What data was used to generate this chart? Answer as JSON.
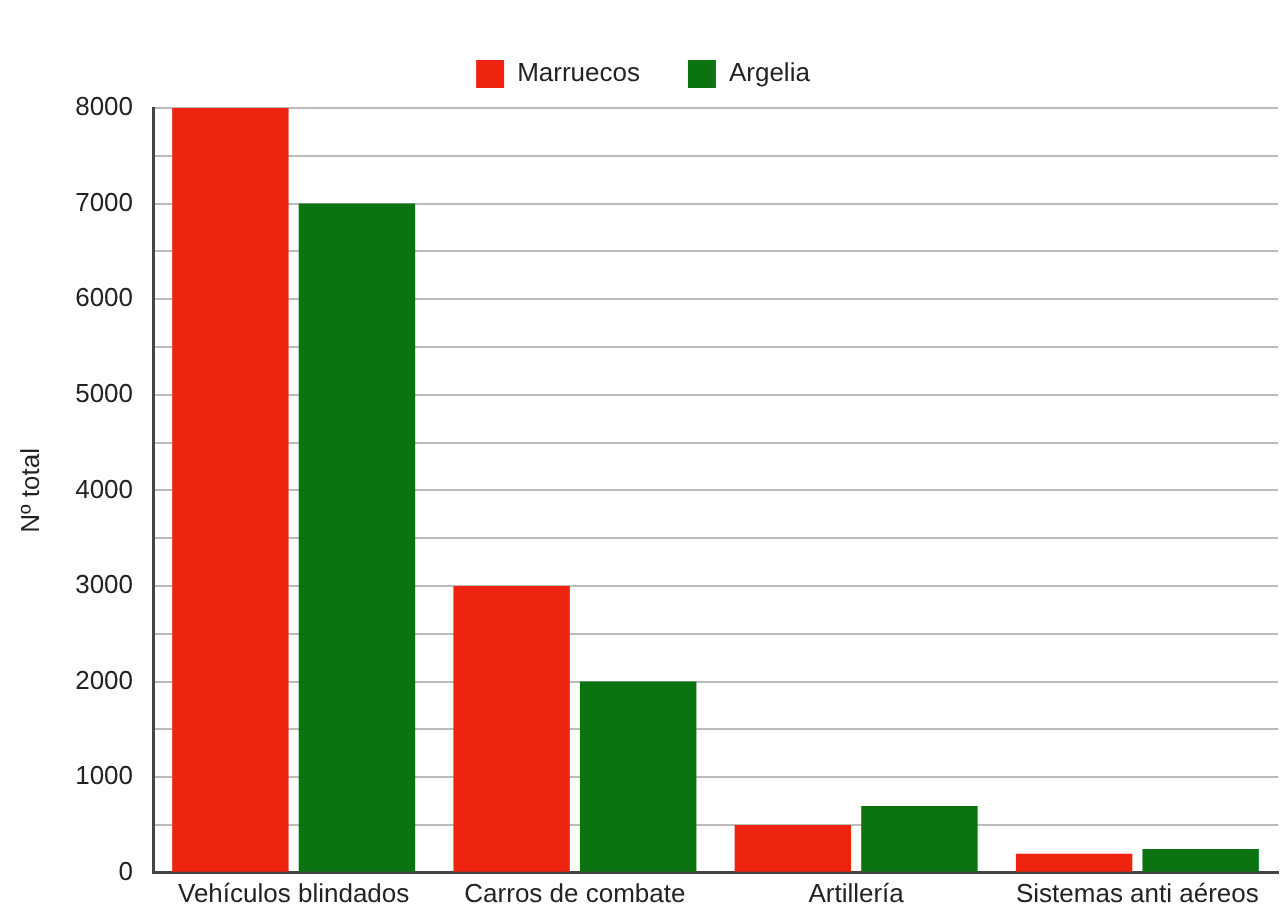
{
  "chart_data": {
    "type": "bar",
    "ylabel": "Nº total",
    "categories": [
      "Vehículos blindados",
      "Carros de combate",
      "Artillería",
      "Sistemas anti aéreos"
    ],
    "series": [
      {
        "name": "Marruecos",
        "color": "#ee2411",
        "values": [
          8000,
          3000,
          500,
          200
        ]
      },
      {
        "name": "Argelia",
        "color": "#0b7410",
        "values": [
          7000,
          2000,
          700,
          250
        ]
      }
    ],
    "ylim": [
      0,
      8000
    ],
    "yticks": [
      0,
      {
        "value": 500,
        "label": null
      },
      1000,
      {
        "value": 1500,
        "label": null
      },
      2000,
      {
        "value": 2500,
        "label": null
      },
      3000,
      {
        "value": 3500,
        "label": null
      },
      4000,
      {
        "value": 4500,
        "label": null
      },
      5000,
      {
        "value": 5500,
        "label": null
      },
      6000,
      {
        "value": 6500,
        "label": null
      },
      7000,
      {
        "value": 7500,
        "label": null
      },
      8000
    ],
    "grid": "y",
    "legend": "top"
  }
}
